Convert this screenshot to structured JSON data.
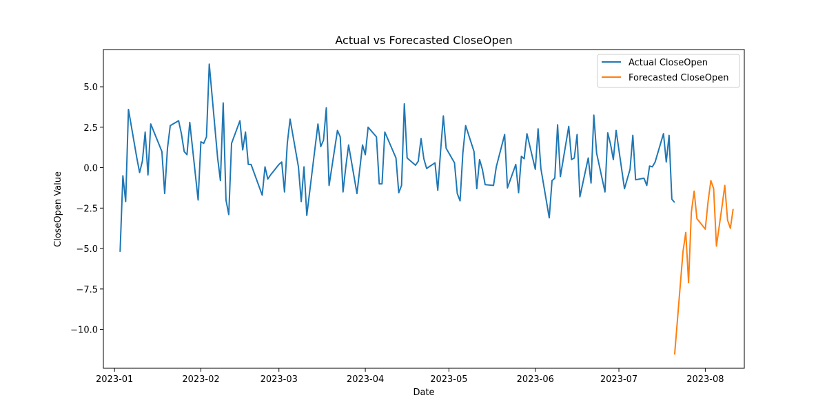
{
  "chart_data": {
    "type": "line",
    "title": "Actual vs Forecasted CloseOpen",
    "xlabel": "Date",
    "ylabel": "CloseOpen Value",
    "x_axis_type": "date",
    "xlim": [
      "2022-12-28",
      "2023-08-15"
    ],
    "ylim": [
      -12.4,
      7.3
    ],
    "grid": false,
    "legend_position": "top-right",
    "x_ticks": [
      "2023-01",
      "2023-02",
      "2023-03",
      "2023-04",
      "2023-05",
      "2023-06",
      "2023-07",
      "2023-08"
    ],
    "y_ticks": [
      5.0,
      2.5,
      0.0,
      -2.5,
      -5.0,
      -7.5,
      -10.0
    ],
    "y_tick_labels": [
      "5.0",
      "2.5",
      "0.0",
      "−2.5",
      "−5.0",
      "−7.5",
      "−10.0"
    ],
    "series": [
      {
        "name": "Actual CloseOpen",
        "color": "#1f77b4",
        "points": [
          [
            "2023-01-03",
            -5.2
          ],
          [
            "2023-01-04",
            -0.5
          ],
          [
            "2023-01-05",
            -2.1
          ],
          [
            "2023-01-06",
            3.6
          ],
          [
            "2023-01-09",
            0.6
          ],
          [
            "2023-01-10",
            -0.3
          ],
          [
            "2023-01-11",
            0.4
          ],
          [
            "2023-01-12",
            2.2
          ],
          [
            "2023-01-13",
            -0.45
          ],
          [
            "2023-01-14",
            2.7
          ],
          [
            "2023-01-18",
            1.0
          ],
          [
            "2023-01-19",
            -1.6
          ],
          [
            "2023-01-20",
            1.2
          ],
          [
            "2023-01-21",
            2.6
          ],
          [
            "2023-01-24",
            2.9
          ],
          [
            "2023-01-25",
            2.1
          ],
          [
            "2023-01-26",
            1.0
          ],
          [
            "2023-01-27",
            0.8
          ],
          [
            "2023-01-28",
            2.8
          ],
          [
            "2023-01-31",
            -2.0
          ],
          [
            "2023-02-01",
            1.6
          ],
          [
            "2023-02-02",
            1.5
          ],
          [
            "2023-02-03",
            1.9
          ],
          [
            "2023-02-04",
            6.4
          ],
          [
            "2023-02-07",
            0.6
          ],
          [
            "2023-02-08",
            -0.8
          ],
          [
            "2023-02-09",
            4.0
          ],
          [
            "2023-02-10",
            -2.0
          ],
          [
            "2023-02-11",
            -2.9
          ],
          [
            "2023-02-12",
            1.5
          ],
          [
            "2023-02-15",
            2.9
          ],
          [
            "2023-02-16",
            1.1
          ],
          [
            "2023-02-17",
            2.2
          ],
          [
            "2023-02-18",
            0.2
          ],
          [
            "2023-02-19",
            0.2
          ],
          [
            "2023-02-23",
            -1.7
          ],
          [
            "2023-02-24",
            0.05
          ],
          [
            "2023-02-25",
            -0.7
          ],
          [
            "2023-02-26",
            -0.45
          ],
          [
            "2023-03-01",
            0.2
          ],
          [
            "2023-03-02",
            0.35
          ],
          [
            "2023-03-03",
            -1.5
          ],
          [
            "2023-03-04",
            1.5
          ],
          [
            "2023-03-05",
            3.0
          ],
          [
            "2023-03-08",
            0.05
          ],
          [
            "2023-03-09",
            -2.1
          ],
          [
            "2023-03-10",
            0.05
          ],
          [
            "2023-03-11",
            -2.95
          ],
          [
            "2023-03-15",
            2.7
          ],
          [
            "2023-03-16",
            1.3
          ],
          [
            "2023-03-17",
            1.7
          ],
          [
            "2023-03-18",
            3.7
          ],
          [
            "2023-03-19",
            -1.1
          ],
          [
            "2023-03-22",
            2.3
          ],
          [
            "2023-03-23",
            1.9
          ],
          [
            "2023-03-24",
            -1.5
          ],
          [
            "2023-03-25",
            0.05
          ],
          [
            "2023-03-26",
            1.4
          ],
          [
            "2023-03-29",
            -1.6
          ],
          [
            "2023-03-31",
            1.4
          ],
          [
            "2023-04-01",
            0.8
          ],
          [
            "2023-04-02",
            2.5
          ],
          [
            "2023-04-05",
            1.9
          ],
          [
            "2023-04-06",
            -1.0
          ],
          [
            "2023-04-07",
            -1.0
          ],
          [
            "2023-04-08",
            2.2
          ],
          [
            "2023-04-12",
            0.6
          ],
          [
            "2023-04-13",
            -1.55
          ],
          [
            "2023-04-14",
            -1.1
          ],
          [
            "2023-04-15",
            3.95
          ],
          [
            "2023-04-16",
            0.6
          ],
          [
            "2023-04-19",
            0.15
          ],
          [
            "2023-04-20",
            0.4
          ],
          [
            "2023-04-21",
            1.8
          ],
          [
            "2023-04-22",
            0.55
          ],
          [
            "2023-04-23",
            -0.05
          ],
          [
            "2023-04-26",
            0.3
          ],
          [
            "2023-04-27",
            -1.4
          ],
          [
            "2023-04-28",
            1.0
          ],
          [
            "2023-04-29",
            3.2
          ],
          [
            "2023-04-30",
            1.2
          ],
          [
            "2023-05-03",
            0.3
          ],
          [
            "2023-05-04",
            -1.6
          ],
          [
            "2023-05-05",
            -2.05
          ],
          [
            "2023-05-06",
            0.9
          ],
          [
            "2023-05-07",
            2.6
          ],
          [
            "2023-05-10",
            1.0
          ],
          [
            "2023-05-11",
            -1.3
          ],
          [
            "2023-05-12",
            0.5
          ],
          [
            "2023-05-13",
            -0.1
          ],
          [
            "2023-05-14",
            -1.05
          ],
          [
            "2023-05-17",
            -1.1
          ],
          [
            "2023-05-18",
            0.05
          ],
          [
            "2023-05-21",
            2.05
          ],
          [
            "2023-05-22",
            -1.25
          ],
          [
            "2023-05-25",
            0.2
          ],
          [
            "2023-05-26",
            -1.55
          ],
          [
            "2023-05-27",
            0.7
          ],
          [
            "2023-05-28",
            0.55
          ],
          [
            "2023-05-29",
            2.1
          ],
          [
            "2023-06-01",
            -0.1
          ],
          [
            "2023-06-02",
            2.4
          ],
          [
            "2023-06-03",
            -0.05
          ],
          [
            "2023-06-06",
            -3.1
          ],
          [
            "2023-06-07",
            -0.8
          ],
          [
            "2023-06-08",
            -0.65
          ],
          [
            "2023-06-09",
            2.65
          ],
          [
            "2023-06-10",
            -0.55
          ],
          [
            "2023-06-13",
            2.55
          ],
          [
            "2023-06-14",
            0.5
          ],
          [
            "2023-06-15",
            0.6
          ],
          [
            "2023-06-16",
            2.05
          ],
          [
            "2023-06-17",
            -1.8
          ],
          [
            "2023-06-20",
            0.6
          ],
          [
            "2023-06-21",
            -0.95
          ],
          [
            "2023-06-22",
            3.25
          ],
          [
            "2023-06-23",
            0.9
          ],
          [
            "2023-06-26",
            -1.5
          ],
          [
            "2023-06-27",
            2.15
          ],
          [
            "2023-06-28",
            1.45
          ],
          [
            "2023-06-29",
            0.5
          ],
          [
            "2023-06-30",
            2.3
          ],
          [
            "2023-07-03",
            -1.3
          ],
          [
            "2023-07-05",
            -0.1
          ],
          [
            "2023-07-06",
            2.0
          ],
          [
            "2023-07-07",
            -0.75
          ],
          [
            "2023-07-10",
            -0.65
          ],
          [
            "2023-07-11",
            -1.1
          ],
          [
            "2023-07-12",
            0.1
          ],
          [
            "2023-07-13",
            0.05
          ],
          [
            "2023-07-14",
            0.35
          ],
          [
            "2023-07-17",
            2.1
          ],
          [
            "2023-07-18",
            0.35
          ],
          [
            "2023-07-19",
            2.0
          ],
          [
            "2023-07-20",
            -1.95
          ],
          [
            "2023-07-21",
            -2.15
          ]
        ]
      },
      {
        "name": "Forecasted CloseOpen",
        "color": "#ff7f0e",
        "points": [
          [
            "2023-07-21",
            -11.55
          ],
          [
            "2023-07-24",
            -5.2
          ],
          [
            "2023-07-25",
            -4.0
          ],
          [
            "2023-07-26",
            -7.1
          ],
          [
            "2023-07-27",
            -2.75
          ],
          [
            "2023-07-28",
            -1.45
          ],
          [
            "2023-07-29",
            -3.15
          ],
          [
            "2023-08-01",
            -3.8
          ],
          [
            "2023-08-02",
            -2.1
          ],
          [
            "2023-08-03",
            -0.8
          ],
          [
            "2023-08-04",
            -1.3
          ],
          [
            "2023-08-05",
            -4.85
          ],
          [
            "2023-08-07",
            -2.4
          ],
          [
            "2023-08-08",
            -1.1
          ],
          [
            "2023-08-09",
            -3.25
          ],
          [
            "2023-08-10",
            -3.75
          ],
          [
            "2023-08-11",
            -2.55
          ]
        ]
      }
    ]
  }
}
